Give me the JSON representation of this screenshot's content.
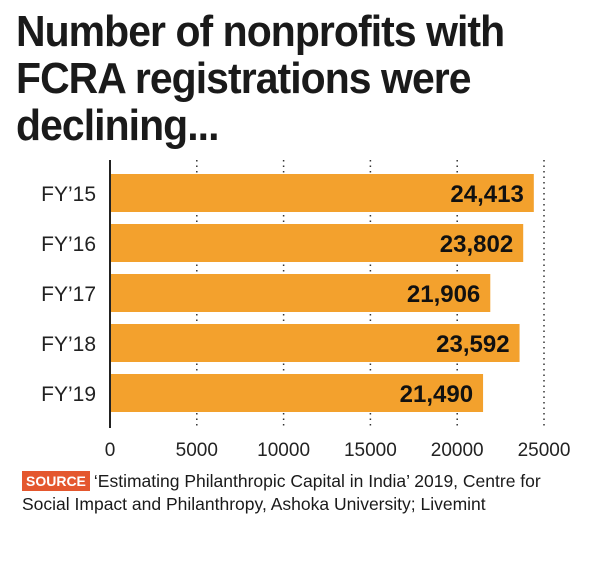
{
  "title": "Number of nonprofits with FCRA registrations were declining...",
  "source": {
    "tag": "SOURCE",
    "text": "‘Estimating Philanthropic Capital in India’ 2019, Centre for Social Impact and Philanthropy, Ashoka University; Livemint"
  },
  "colors": {
    "bar": "#f3a12d",
    "source_tag": "#e4572e",
    "grid": "#333333"
  },
  "chart_data": {
    "type": "bar",
    "orientation": "horizontal",
    "title": "Number of nonprofits with FCRA registrations were declining...",
    "categories": [
      "FY’15",
      "FY’16",
      "FY’17",
      "FY’18",
      "FY’19"
    ],
    "values": [
      24413,
      23802,
      21906,
      23592,
      21490
    ],
    "value_labels": [
      "24,413",
      "23,802",
      "21,906",
      "23,592",
      "21,490"
    ],
    "xlim": [
      0,
      25000
    ],
    "xticks": [
      0,
      5000,
      10000,
      15000,
      20000,
      25000
    ],
    "xtick_labels": [
      "0",
      "5000",
      "10000",
      "15000",
      "20000",
      "25000"
    ],
    "grid": "vertical dotted",
    "legend": "none"
  }
}
